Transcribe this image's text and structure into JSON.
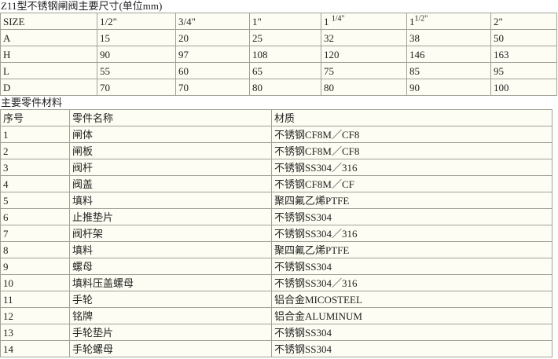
{
  "page": {
    "dim_title": "Z11型不锈钢闸阀主要尺寸(单位mm)",
    "parts_title": "主要零件材料"
  },
  "colors": {
    "cell_bg": "#fdfdf3",
    "border": "#a1a199",
    "text": "#222222",
    "page_bg": "#ffffff"
  },
  "dim_table": {
    "columns": [
      "SIZE",
      "1/2\"",
      "3/4\"",
      "1\"",
      {
        "base": "1 ",
        "sup": "1/4\""
      },
      {
        "base": "1",
        "sup": "1/2\""
      },
      "2\""
    ],
    "rows": [
      [
        "A",
        "15",
        "20",
        "25",
        "32",
        "38",
        "50"
      ],
      [
        "H",
        "90",
        "97",
        "108",
        "120",
        "146",
        "163"
      ],
      [
        "L",
        "55",
        "60",
        "65",
        "75",
        "85",
        "95"
      ],
      [
        "D",
        "70",
        "70",
        "80",
        "80",
        "90",
        "100"
      ]
    ]
  },
  "parts_table": {
    "columns": [
      "序号",
      "零件名称",
      "材质"
    ],
    "rows": [
      [
        "1",
        "闸体",
        "不锈钢CF8M／CF8"
      ],
      [
        "2",
        "闸板",
        "不锈钢CF8M／CF8"
      ],
      [
        "3",
        "阀杆",
        "不锈钢SS304／316"
      ],
      [
        "4",
        "阀盖",
        "不锈钢CF8M／CF"
      ],
      [
        "5",
        "填料",
        "聚四氟乙烯PTFE"
      ],
      [
        "6",
        "止推垫片",
        "不锈钢SS304"
      ],
      [
        "7",
        "阀杆架",
        "不锈钢SS304／316"
      ],
      [
        "8",
        "填料",
        "聚四氟乙烯PTFE"
      ],
      [
        "9",
        "螺母",
        "不锈钢SS304"
      ],
      [
        "10",
        "填料压盖螺母",
        "不锈钢SS304／316"
      ],
      [
        "11",
        "手轮",
        "铝合金MICOSTEEL"
      ],
      [
        "12",
        "铭牌",
        "铝合金ALUMINUM"
      ],
      [
        "13",
        "手轮垫片",
        "不锈钢SS304"
      ],
      [
        "14",
        "手轮螺母",
        "不锈钢SS304"
      ]
    ]
  }
}
